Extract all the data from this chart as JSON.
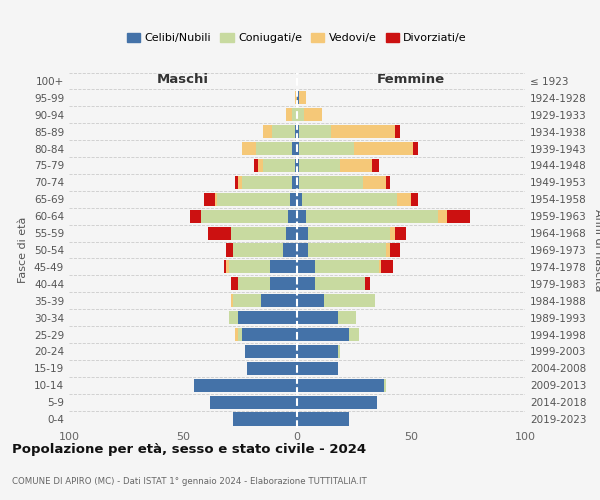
{
  "age_groups": [
    "0-4",
    "5-9",
    "10-14",
    "15-19",
    "20-24",
    "25-29",
    "30-34",
    "35-39",
    "40-44",
    "45-49",
    "50-54",
    "55-59",
    "60-64",
    "65-69",
    "70-74",
    "75-79",
    "80-84",
    "85-89",
    "90-94",
    "95-99",
    "100+"
  ],
  "birth_years": [
    "2019-2023",
    "2014-2018",
    "2009-2013",
    "2004-2008",
    "1999-2003",
    "1994-1998",
    "1989-1993",
    "1984-1988",
    "1979-1983",
    "1974-1978",
    "1969-1973",
    "1964-1968",
    "1959-1963",
    "1954-1958",
    "1949-1953",
    "1944-1948",
    "1939-1943",
    "1934-1938",
    "1929-1933",
    "1924-1928",
    "≤ 1923"
  ],
  "males": {
    "celibi": [
      28,
      38,
      45,
      22,
      23,
      24,
      26,
      16,
      12,
      12,
      6,
      5,
      4,
      3,
      2,
      1,
      2,
      1,
      0,
      0,
      0
    ],
    "coniugati": [
      0,
      0,
      0,
      0,
      0,
      2,
      4,
      12,
      14,
      18,
      22,
      24,
      38,
      32,
      22,
      14,
      16,
      10,
      2,
      0,
      0
    ],
    "vedovi": [
      0,
      0,
      0,
      0,
      0,
      1,
      0,
      1,
      0,
      1,
      0,
      0,
      0,
      1,
      2,
      2,
      6,
      4,
      3,
      1,
      0
    ],
    "divorziati": [
      0,
      0,
      0,
      0,
      0,
      0,
      0,
      0,
      3,
      1,
      3,
      10,
      5,
      5,
      1,
      2,
      0,
      0,
      0,
      0,
      0
    ]
  },
  "females": {
    "nubili": [
      23,
      35,
      38,
      18,
      18,
      23,
      18,
      12,
      8,
      8,
      5,
      5,
      4,
      2,
      1,
      1,
      1,
      1,
      0,
      1,
      0
    ],
    "coniugate": [
      0,
      0,
      1,
      0,
      1,
      4,
      8,
      22,
      22,
      28,
      34,
      36,
      58,
      42,
      28,
      18,
      24,
      14,
      3,
      0,
      0
    ],
    "vedove": [
      0,
      0,
      0,
      0,
      0,
      0,
      0,
      0,
      0,
      1,
      2,
      2,
      4,
      6,
      10,
      14,
      26,
      28,
      8,
      3,
      0
    ],
    "divorziate": [
      0,
      0,
      0,
      0,
      0,
      0,
      0,
      0,
      2,
      5,
      4,
      5,
      10,
      3,
      2,
      3,
      2,
      2,
      0,
      0,
      0
    ]
  },
  "colors": {
    "celibi": "#4472a8",
    "coniugati": "#c8daa0",
    "vedovi": "#f5c878",
    "divorziati": "#cc1111"
  },
  "xlim": 100,
  "title": "Popolazione per età, sesso e stato civile - 2024",
  "subtitle": "COMUNE DI APIRO (MC) - Dati ISTAT 1° gennaio 2024 - Elaborazione TUTTITALIA.IT",
  "ylabel_left": "Fasce di età",
  "ylabel_right": "Anni di nascita",
  "legend_labels": [
    "Celibi/Nubili",
    "Coniugati/e",
    "Vedovi/e",
    "Divorziati/e"
  ],
  "bg_color": "#f5f5f5",
  "grid_color": "#cccccc"
}
